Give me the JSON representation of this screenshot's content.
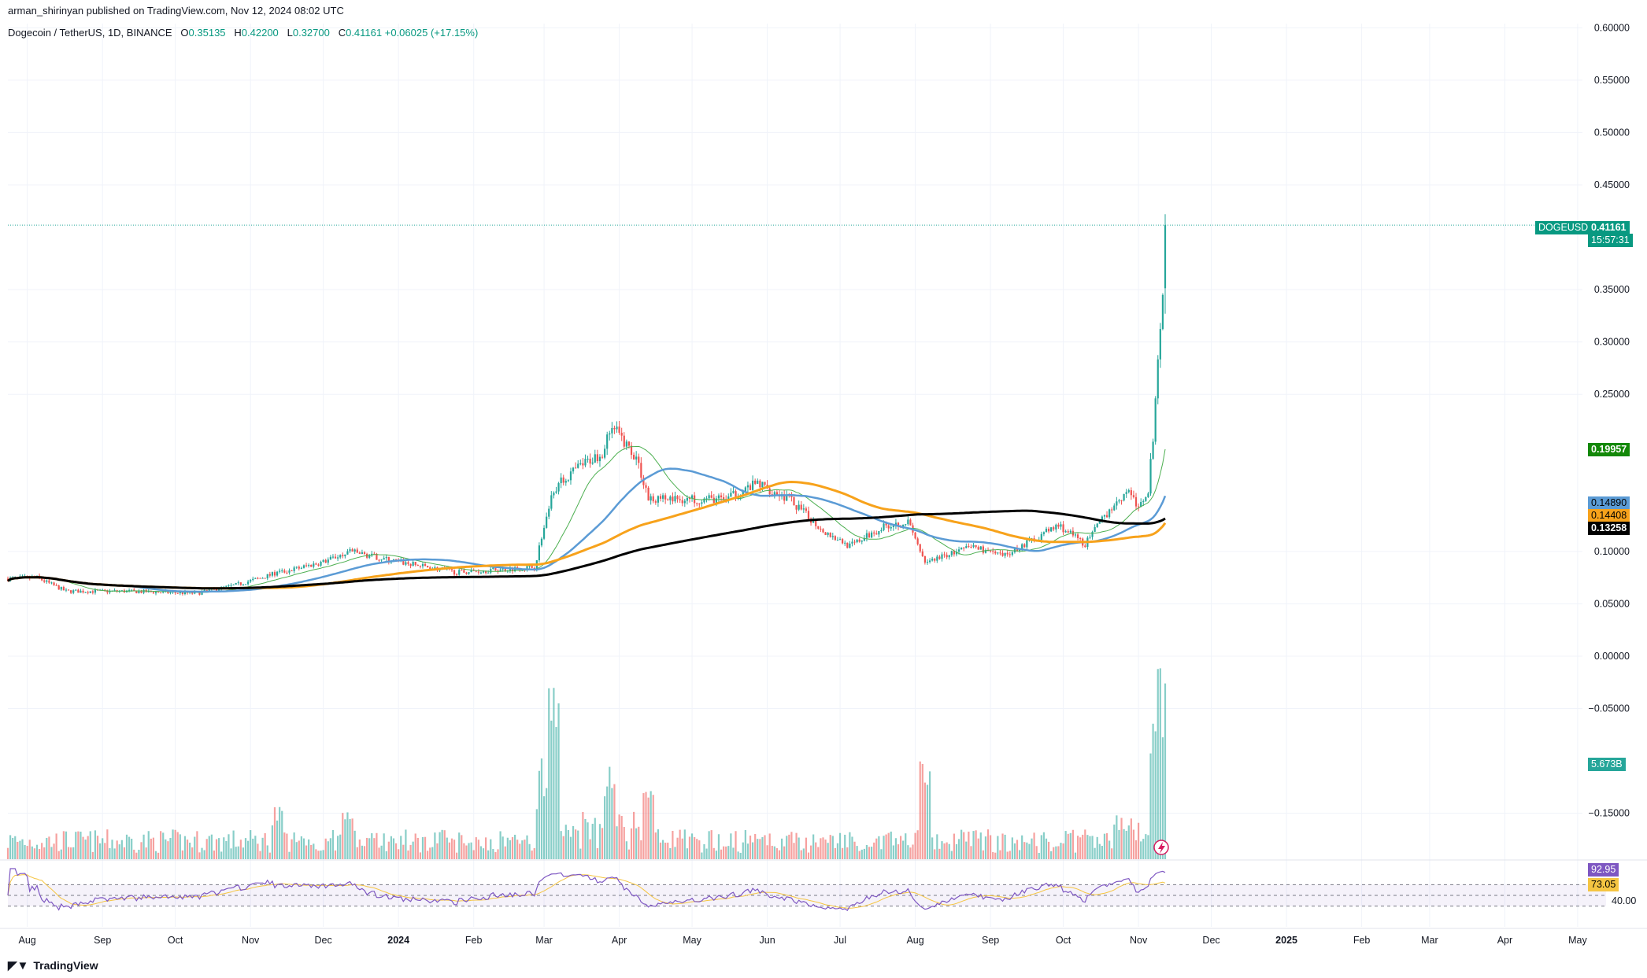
{
  "header": {
    "published": "arman_shirinyan published on TradingView.com, Nov 12, 2024 08:02 UTC",
    "symbol_line": "Dogecoin / TetherUS, 1D, BINANCE",
    "open_label": "O",
    "open": "0.35135",
    "high_label": "H",
    "high": "0.42200",
    "low_label": "L",
    "low": "0.32700",
    "close_label": "C",
    "close": "0.41161",
    "change": "+0.06025 (+17.15%)"
  },
  "tags": {
    "symbol": "DOGEUSDT",
    "last_price": "0.41161",
    "countdown": "15:57:31",
    "ma_green": "0.19957",
    "ma_blue": "0.14890",
    "ma_orange": "0.14408",
    "ma_black": "0.13258",
    "volume": "5.673B",
    "rsi": "92.95",
    "rsi_ma": "73.05",
    "rsi_level": "40.00"
  },
  "footer": {
    "brand": "TradingView"
  },
  "colors": {
    "up": "#26a69a",
    "down": "#ef5350",
    "ma_green": "#4caf50",
    "ma_blue": "#5b9bd5",
    "ma_orange": "#f7a21b",
    "ma_black": "#000000",
    "rsi": "#7e57c2",
    "rsi_ma": "#f5c542"
  },
  "chart_data": {
    "type": "candlestick",
    "title": "Dogecoin / TetherUS, 1D, BINANCE",
    "y_ticks": [
      "0.60000",
      "0.55000",
      "0.50000",
      "0.45000",
      "0.35000",
      "0.30000",
      "0.25000",
      "0.10000",
      "0.05000",
      "0.00000",
      "−0.05000",
      "−0.15000"
    ],
    "ylim": [
      -0.19,
      0.6
    ],
    "x_ticks": [
      "Aug",
      "Sep",
      "Oct",
      "Nov",
      "Dec",
      "2024",
      "Feb",
      "Mar",
      "Apr",
      "May",
      "Jun",
      "Jul",
      "Aug",
      "Sep",
      "Oct",
      "Nov",
      "Dec",
      "2025",
      "Feb",
      "Mar",
      "Apr",
      "May"
    ],
    "price_path": [
      [
        "2023-07-24",
        0.074
      ],
      [
        "2023-08-05",
        0.075
      ],
      [
        "2023-08-17",
        0.062
      ],
      [
        "2023-09-10",
        0.062
      ],
      [
        "2023-10-10",
        0.06
      ],
      [
        "2023-10-26",
        0.068
      ],
      [
        "2023-11-10",
        0.078
      ],
      [
        "2023-12-01",
        0.09
      ],
      [
        "2023-12-12",
        0.1
      ],
      [
        "2024-01-01",
        0.09
      ],
      [
        "2024-01-25",
        0.08
      ],
      [
        "2024-02-26",
        0.085
      ],
      [
        "2024-03-05",
        0.16
      ],
      [
        "2024-03-15",
        0.18
      ],
      [
        "2024-03-25",
        0.195
      ],
      [
        "2024-03-29",
        0.22
      ],
      [
        "2024-04-08",
        0.19
      ],
      [
        "2024-04-13",
        0.15
      ],
      [
        "2024-04-25",
        0.15
      ],
      [
        "2024-05-15",
        0.15
      ],
      [
        "2024-05-28",
        0.165
      ],
      [
        "2024-06-10",
        0.15
      ],
      [
        "2024-06-24",
        0.12
      ],
      [
        "2024-07-05",
        0.105
      ],
      [
        "2024-07-20",
        0.125
      ],
      [
        "2024-07-29",
        0.128
      ],
      [
        "2024-08-05",
        0.09
      ],
      [
        "2024-08-25",
        0.105
      ],
      [
        "2024-09-06",
        0.095
      ],
      [
        "2024-09-29",
        0.125
      ],
      [
        "2024-10-10",
        0.107
      ],
      [
        "2024-10-20",
        0.14
      ],
      [
        "2024-10-28",
        0.16
      ],
      [
        "2024-11-01",
        0.14
      ],
      [
        "2024-11-05",
        0.16
      ],
      [
        "2024-11-07",
        0.21
      ],
      [
        "2024-11-09",
        0.29
      ],
      [
        "2024-11-11",
        0.351
      ],
      [
        "2024-11-12",
        0.41161
      ]
    ],
    "volume_peaks": [
      [
        "2024-03-05",
        "highest"
      ],
      [
        "2024-03-28",
        "high"
      ],
      [
        "2024-08-05",
        "high"
      ],
      [
        "2024-11-08",
        "high"
      ],
      [
        "2024-11-11",
        "high"
      ],
      [
        "2024-11-12",
        "5.673B"
      ]
    ],
    "moving_averages": [
      {
        "color": "green",
        "last": 0.19957
      },
      {
        "color": "blue",
        "last": 0.1489
      },
      {
        "color": "orange",
        "last": 0.14408
      },
      {
        "color": "black",
        "last": 0.13258
      }
    ],
    "rsi": {
      "last": 92.95,
      "ma": 73.05,
      "band": [
        30,
        70
      ]
    },
    "grid": true
  }
}
